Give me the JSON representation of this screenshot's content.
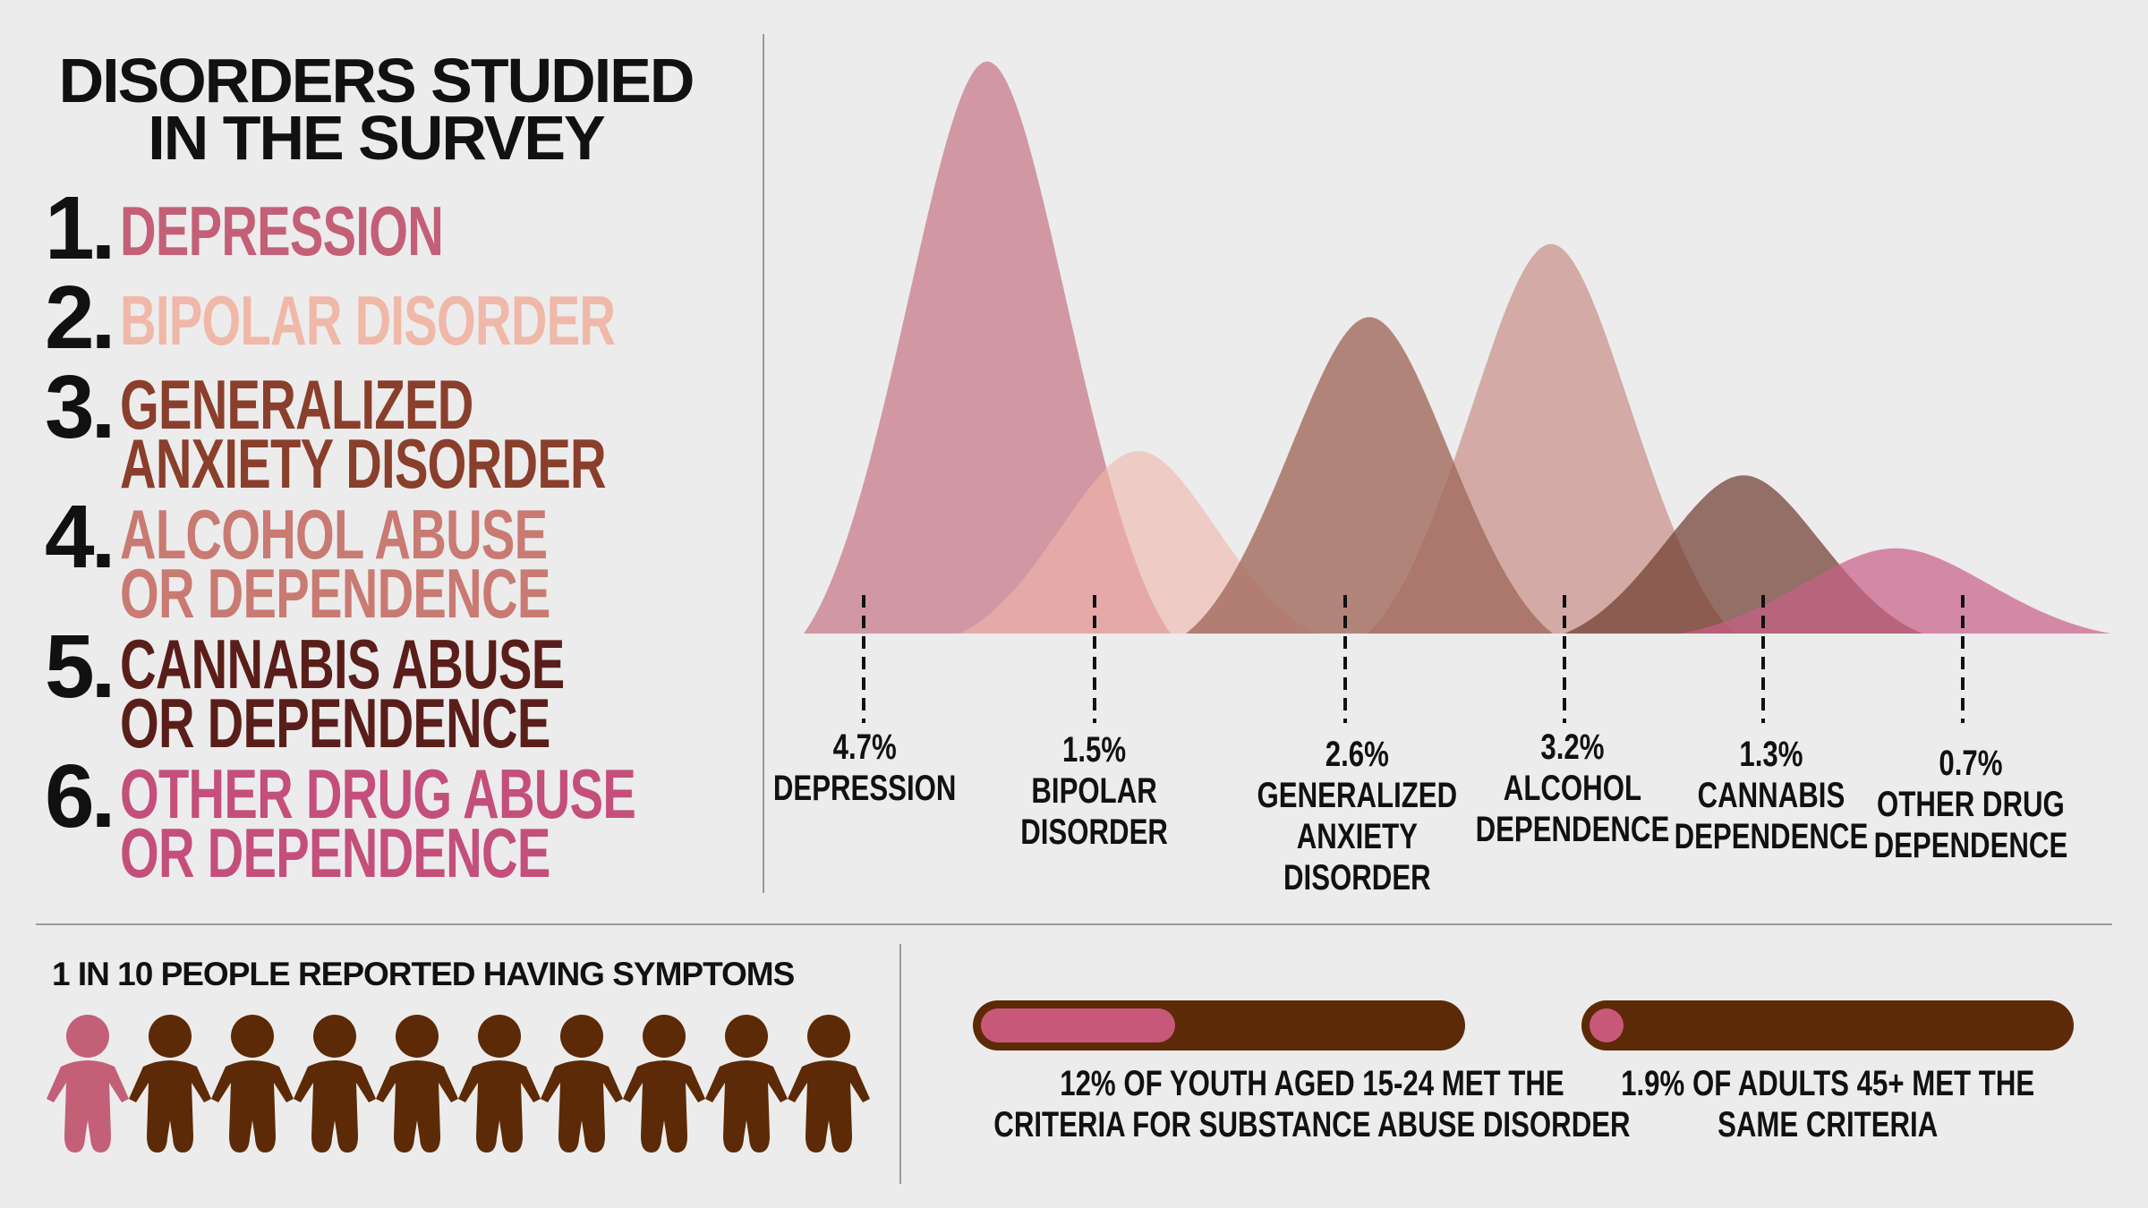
{
  "title": "DISORDERS STUDIED IN THE SURVEY",
  "disorders": [
    {
      "num": "1.",
      "lines": [
        "DEPRESSION"
      ],
      "color": "#c45f78"
    },
    {
      "num": "2.",
      "lines": [
        "BIPOLAR DISORDER"
      ],
      "color": "#f0b8a8"
    },
    {
      "num": "3.",
      "lines": [
        "GENERALIZED",
        "ANXIETY DISORDER"
      ],
      "color": "#8a3e2c"
    },
    {
      "num": "4.",
      "lines": [
        "ALCOHOL ABUSE",
        "OR DEPENDENCE"
      ],
      "color": "#c97a72"
    },
    {
      "num": "5.",
      "lines": [
        "CANNABIS ABUSE",
        "OR DEPENDENCE"
      ],
      "color": "#5a1e1a"
    },
    {
      "num": "6.",
      "lines": [
        "OTHER DRUG ABUSE",
        "OR DEPENDENCE"
      ],
      "color": "#c44f7a"
    }
  ],
  "chart_data": {
    "type": "area",
    "title": "",
    "series": [
      {
        "pct": "4.7%",
        "value": 4.7,
        "label_lines": [
          "DEPRESSION"
        ],
        "color": "#d093a0",
        "opacity": 0.95
      },
      {
        "pct": "1.5%",
        "value": 1.5,
        "label_lines": [
          "BIPOLAR",
          "DISORDER"
        ],
        "color": "#f2b6ab",
        "opacity": 0.6
      },
      {
        "pct": "2.6%",
        "value": 2.6,
        "label_lines": [
          "GENERALIZED",
          "ANXIETY",
          "DISORDER"
        ],
        "color": "#a26a5e",
        "opacity": 0.8
      },
      {
        "pct": "3.2%",
        "value": 3.2,
        "label_lines": [
          "ALCOHOL",
          "DEPENDENCE"
        ],
        "color": "#c98e88",
        "opacity": 0.7
      },
      {
        "pct": "1.3%",
        "value": 1.3,
        "label_lines": [
          "CANNABIS",
          "DEPENDENCE"
        ],
        "color": "#6e3a2e",
        "opacity": 0.7
      },
      {
        "pct": "0.7%",
        "value": 0.7,
        "label_lines": [
          "OTHER DRUG",
          "DEPENDENCE"
        ],
        "color": "#c95f88",
        "opacity": 0.7
      }
    ]
  },
  "people": {
    "caption": "1 IN 10 PEOPLE REPORTED HAVING SYMPTOMS",
    "total": 10,
    "highlighted": 1,
    "highlight_color": "#c45f78",
    "base_color": "#5c2a06"
  },
  "bars": [
    {
      "fraction": 0.12,
      "caption_lines": [
        "12% OF YOUTH AGED 15-24 MET THE",
        "CRITERIA FOR SUBSTANCE ABUSE DISORDER"
      ]
    },
    {
      "fraction": 0.019,
      "caption_lines": [
        "1.9% OF ADULTS 45+ MET THE",
        "SAME CRITERIA"
      ]
    }
  ]
}
